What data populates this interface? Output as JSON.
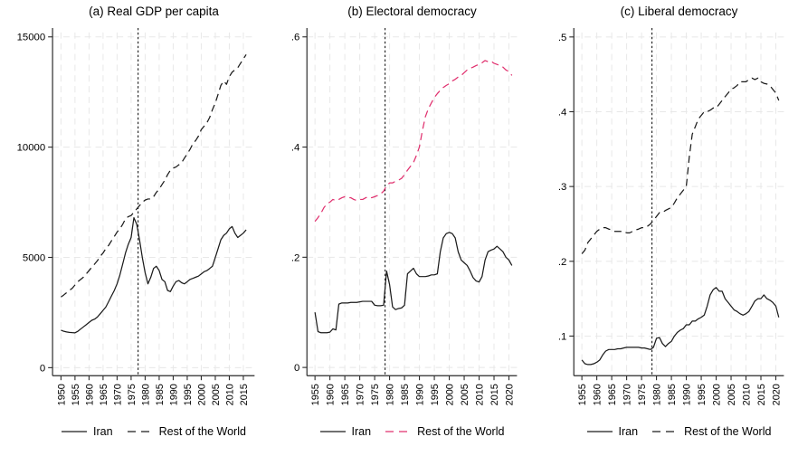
{
  "figure_background": "#ffffff",
  "colors": {
    "line_black": "#1a1a1a",
    "line_pink": "#e0306e",
    "grid": "#e8e8e8",
    "axis": "#2a2a2a",
    "reference_line": "#000000"
  },
  "chart_data": [
    {
      "type": "line",
      "title": "(a) Real GDP per capita",
      "xlabel": "",
      "ylabel": "",
      "grid": true,
      "legend_position": "bottom",
      "xlim": [
        1947,
        2019
      ],
      "ylim": [
        -365,
        15200
      ],
      "xticks": {
        "values": [
          1950,
          1955,
          1960,
          1965,
          1970,
          1975,
          1980,
          1985,
          1990,
          1995,
          2000,
          2005,
          2010,
          2015
        ],
        "labels": [
          "1950",
          "1955",
          "1960",
          "1965",
          "1970",
          "1975",
          "1980",
          "1985",
          "1990",
          "1995",
          "2000",
          "2005",
          "2010",
          "2015"
        ]
      },
      "yticks": {
        "values": [
          0,
          5000,
          10000,
          15000
        ],
        "labels": [
          "0",
          "5000",
          "10000",
          "15000"
        ]
      },
      "vline": {
        "x": 1977.5,
        "style": "dotted",
        "color": "#000000"
      },
      "series": [
        {
          "name": "Iran",
          "color": "#1a1a1a",
          "dash": "solid",
          "x_start": 1950,
          "step": 1,
          "values": [
            1700,
            1650,
            1620,
            1600,
            1590,
            1580,
            1650,
            1750,
            1850,
            1950,
            2050,
            2150,
            2200,
            2300,
            2450,
            2600,
            2750,
            3000,
            3250,
            3500,
            3800,
            4200,
            4700,
            5200,
            5600,
            5900,
            6800,
            6500,
            5800,
            5000,
            4300,
            3800,
            4100,
            4500,
            4600,
            4400,
            4000,
            3900,
            3500,
            3450,
            3700,
            3900,
            3950,
            3850,
            3800,
            3900,
            4000,
            4050,
            4100,
            4150,
            4250,
            4350,
            4400,
            4500,
            4600,
            5000,
            5400,
            5800,
            6000,
            6100,
            6300,
            6400,
            6100,
            5900,
            6000,
            6100,
            6250
          ]
        },
        {
          "name": "Rest of the World",
          "color": "#1a1a1a",
          "dash": "dash",
          "x_start": 1950,
          "step": 1,
          "values": [
            3200,
            3300,
            3400,
            3500,
            3600,
            3750,
            3900,
            4000,
            4100,
            4250,
            4400,
            4550,
            4700,
            4850,
            5050,
            5200,
            5400,
            5550,
            5750,
            5950,
            6150,
            6300,
            6500,
            6750,
            6850,
            6900,
            7050,
            7200,
            7350,
            7500,
            7600,
            7650,
            7650,
            7750,
            7950,
            8100,
            8300,
            8500,
            8750,
            8950,
            9050,
            9100,
            9200,
            9300,
            9500,
            9700,
            9900,
            10150,
            10300,
            10500,
            10800,
            10950,
            11100,
            11350,
            11700,
            12000,
            12400,
            12800,
            13000,
            12850,
            13200,
            13400,
            13500,
            13600,
            13800,
            14000,
            14200
          ]
        }
      ]
    },
    {
      "type": "line",
      "title": "(b) Electoral democracy",
      "xlabel": "",
      "ylabel": "",
      "grid": true,
      "legend_position": "bottom",
      "xlim": [
        1952.3,
        2022.7
      ],
      "ylim": [
        -0.015,
        0.608
      ],
      "xticks": {
        "values": [
          1955,
          1960,
          1965,
          1970,
          1975,
          1980,
          1985,
          1990,
          1995,
          2000,
          2005,
          2010,
          2015,
          2020
        ],
        "labels": [
          "1955",
          "1960",
          "1965",
          "1970",
          "1975",
          "1980",
          "1985",
          "1990",
          "1995",
          "2000",
          "2005",
          "2010",
          "2015",
          "2020"
        ]
      },
      "yticks": {
        "values": [
          0,
          0.2,
          0.4,
          0.6
        ],
        "labels": [
          "0",
          ".2",
          ".4",
          ".6"
        ]
      },
      "vline": {
        "x": 1978.5,
        "style": "dotted",
        "color": "#000000"
      },
      "series": [
        {
          "name": "Iran",
          "color": "#1a1a1a",
          "dash": "solid",
          "x_start": 1955,
          "step": 1,
          "values": [
            0.1,
            0.065,
            0.063,
            0.063,
            0.063,
            0.064,
            0.07,
            0.068,
            0.115,
            0.117,
            0.117,
            0.117,
            0.118,
            0.118,
            0.118,
            0.119,
            0.12,
            0.12,
            0.12,
            0.12,
            0.113,
            0.112,
            0.112,
            0.113,
            0.175,
            0.15,
            0.11,
            0.105,
            0.107,
            0.108,
            0.113,
            0.17,
            0.175,
            0.18,
            0.17,
            0.165,
            0.165,
            0.165,
            0.166,
            0.168,
            0.168,
            0.17,
            0.21,
            0.235,
            0.243,
            0.245,
            0.243,
            0.235,
            0.21,
            0.195,
            0.19,
            0.185,
            0.175,
            0.163,
            0.157,
            0.155,
            0.165,
            0.195,
            0.21,
            0.213,
            0.215,
            0.22,
            0.215,
            0.21,
            0.2,
            0.195,
            0.185
          ]
        },
        {
          "name": "Rest of the World",
          "color": "#e0306e",
          "dash": "dash",
          "x_start": 1955,
          "step": 1,
          "values": [
            0.265,
            0.272,
            0.28,
            0.29,
            0.297,
            0.3,
            0.305,
            0.303,
            0.305,
            0.308,
            0.31,
            0.308,
            0.308,
            0.305,
            0.303,
            0.305,
            0.305,
            0.308,
            0.31,
            0.308,
            0.31,
            0.312,
            0.315,
            0.32,
            0.33,
            0.335,
            0.335,
            0.338,
            0.34,
            0.343,
            0.35,
            0.358,
            0.365,
            0.372,
            0.385,
            0.4,
            0.43,
            0.455,
            0.47,
            0.48,
            0.49,
            0.497,
            0.503,
            0.508,
            0.512,
            0.515,
            0.52,
            0.523,
            0.527,
            0.53,
            0.535,
            0.54,
            0.543,
            0.545,
            0.548,
            0.55,
            0.553,
            0.557,
            0.555,
            0.556,
            0.552,
            0.55,
            0.548,
            0.545,
            0.54,
            0.537,
            0.53
          ]
        }
      ]
    },
    {
      "type": "line",
      "title": "(c) Liberal democracy",
      "xlabel": "",
      "ylabel": "",
      "grid": true,
      "legend_position": "bottom",
      "xlim": [
        1952.3,
        2022.7
      ],
      "ylim": [
        0.047,
        0.506
      ],
      "xticks": {
        "values": [
          1955,
          1960,
          1965,
          1970,
          1975,
          1980,
          1985,
          1990,
          1995,
          2000,
          2005,
          2010,
          2015,
          2020
        ],
        "labels": [
          "1955",
          "1960",
          "1965",
          "1970",
          "1975",
          "1980",
          "1985",
          "1990",
          "1995",
          "2000",
          "2005",
          "2010",
          "2015",
          "2020"
        ]
      },
      "yticks": {
        "values": [
          0.1,
          0.2,
          0.3,
          0.4,
          0.5
        ],
        "labels": [
          ".1",
          ".2",
          ".3",
          ".4",
          ".5"
        ]
      },
      "vline": {
        "x": 1978.5,
        "style": "dotted",
        "color": "#000000"
      },
      "series": [
        {
          "name": "Iran",
          "color": "#1a1a1a",
          "dash": "solid",
          "x_start": 1955,
          "step": 1,
          "values": [
            0.068,
            0.063,
            0.062,
            0.062,
            0.063,
            0.065,
            0.068,
            0.075,
            0.08,
            0.082,
            0.082,
            0.082,
            0.083,
            0.083,
            0.084,
            0.085,
            0.085,
            0.085,
            0.085,
            0.085,
            0.084,
            0.084,
            0.083,
            0.082,
            0.085,
            0.097,
            0.098,
            0.09,
            0.086,
            0.09,
            0.093,
            0.1,
            0.105,
            0.108,
            0.11,
            0.115,
            0.115,
            0.12,
            0.12,
            0.123,
            0.125,
            0.128,
            0.14,
            0.155,
            0.162,
            0.165,
            0.16,
            0.16,
            0.15,
            0.145,
            0.14,
            0.135,
            0.133,
            0.13,
            0.128,
            0.13,
            0.133,
            0.14,
            0.147,
            0.15,
            0.15,
            0.155,
            0.15,
            0.148,
            0.145,
            0.14,
            0.125
          ]
        },
        {
          "name": "Rest of the World",
          "color": "#1a1a1a",
          "dash": "dash",
          "x_start": 1955,
          "step": 1,
          "values": [
            0.21,
            0.215,
            0.225,
            0.23,
            0.235,
            0.24,
            0.243,
            0.245,
            0.245,
            0.243,
            0.242,
            0.24,
            0.24,
            0.24,
            0.24,
            0.238,
            0.238,
            0.24,
            0.242,
            0.243,
            0.245,
            0.245,
            0.247,
            0.25,
            0.255,
            0.26,
            0.265,
            0.265,
            0.268,
            0.27,
            0.272,
            0.278,
            0.285,
            0.29,
            0.295,
            0.3,
            0.34,
            0.37,
            0.38,
            0.39,
            0.395,
            0.4,
            0.4,
            0.402,
            0.405,
            0.405,
            0.41,
            0.415,
            0.42,
            0.425,
            0.43,
            0.432,
            0.435,
            0.44,
            0.44,
            0.44,
            0.443,
            0.445,
            0.443,
            0.445,
            0.44,
            0.438,
            0.437,
            0.435,
            0.43,
            0.425,
            0.415
          ]
        }
      ]
    }
  ]
}
